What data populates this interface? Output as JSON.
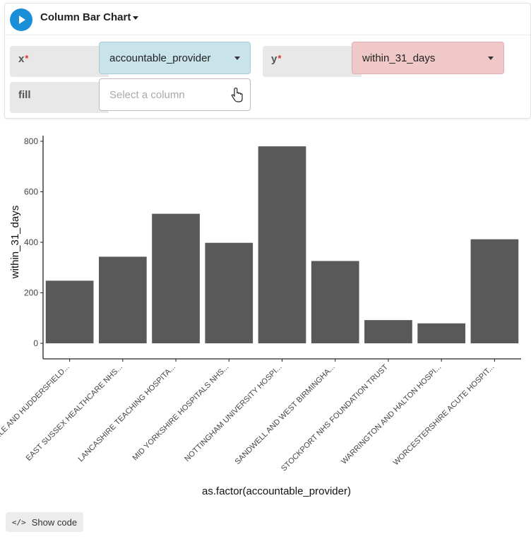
{
  "header": {
    "title": "Column Bar Chart"
  },
  "args": {
    "x": {
      "label": "x",
      "required_mark": "*",
      "value": "accountable_provider"
    },
    "y": {
      "label": "y",
      "required_mark": "*",
      "value": "within_31_days"
    },
    "fill": {
      "label": "fill",
      "placeholder": "Select a column"
    }
  },
  "footer": {
    "show_code_label": "Show code"
  },
  "chart_data": {
    "type": "bar",
    "categories": [
      "...LE AND HUDDERSFIELD...",
      "EAST SUSSEX HEALTHCARE NHS...",
      "LANCASHIRE TEACHING HOSPITA...",
      "MID YORKSHIRE HOSPITALS NHS...",
      "NOTTINGHAM UNIVERSITY HOSPI...",
      "SANDWELL AND WEST BIRMINGHA...",
      "STOCKPORT NHS FOUNDATION TRUST",
      "WARRINGTON AND HALTON HOSPI...",
      "WORCESTERSHIRE ACUTE HOSPIT..."
    ],
    "values": [
      248,
      343,
      513,
      398,
      780,
      326,
      92,
      79,
      412
    ],
    "xlabel": "as.factor(accountable_provider)",
    "ylabel": "within_31_days",
    "ylim": [
      0,
      820
    ],
    "yticks": [
      0,
      200,
      400,
      600,
      800
    ],
    "bar_color": "#595959",
    "grid": false
  }
}
